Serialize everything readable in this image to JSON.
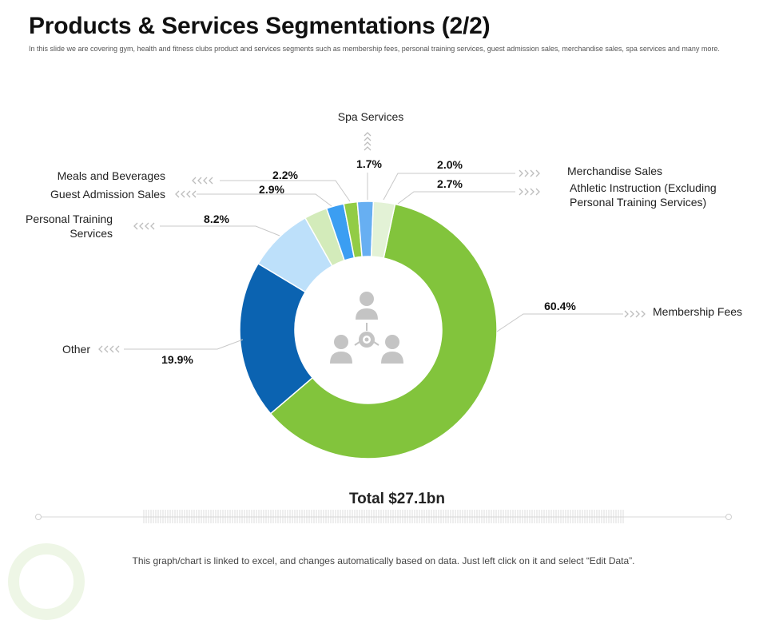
{
  "title": "Products & Services Segmentations (2/2)",
  "subtitle": "In this slide we are covering gym, health and fitness clubs product and services segments such as membership fees, personal training services, guest admission sales, merchandise sales, spa services and many more.",
  "chart_data": {
    "type": "donut",
    "title": "Products & Services Segmentations (2/2)",
    "total_label": "Total $27.1bn",
    "unit": "%",
    "segments": [
      {
        "name": "Membership Fees",
        "value": 60.4,
        "label": "60.4%",
        "color": "#82c43c"
      },
      {
        "name": "Other",
        "value": 19.9,
        "label": "19.9%",
        "color": "#0b63b1"
      },
      {
        "name": "Personal Training Services",
        "value": 8.2,
        "label": "8.2%",
        "color": "#bde0fa"
      },
      {
        "name": "Guest Admission Sales",
        "value": 2.9,
        "label": "2.9%",
        "color": "#d3ebba"
      },
      {
        "name": "Meals and Beverages",
        "value": 2.2,
        "label": "2.2%",
        "color": "#3b9ef2"
      },
      {
        "name": "Spa Services",
        "value": 1.7,
        "label": "1.7%",
        "color": "#92cc46"
      },
      {
        "name": "Merchandise Sales",
        "value": 2.0,
        "label": "2.0%",
        "color": "#67aff2"
      },
      {
        "name": "Athletic Instruction (Excluding Personal Training Services)",
        "value": 2.7,
        "label": "2.7%",
        "color": "#e3f2d6"
      }
    ]
  },
  "labels": {
    "membership": "Membership Fees",
    "other": "Other",
    "personal_training_1": "Personal Training",
    "personal_training_2": "Services",
    "guest_admission": "Guest Admission Sales",
    "meals": "Meals and Beverages",
    "spa": "Spa Services",
    "merchandise": "Merchandise Sales",
    "athletic_1": "Athletic Instruction (Excluding",
    "athletic_2": "Personal Training Services)"
  },
  "footnote": "This graph/chart is linked to excel, and changes automatically based on data. Just left click on it and select “Edit Data”.",
  "icons": {
    "center": "people-network-icon",
    "chevron": "chevron-arrow-icon"
  },
  "colors": {
    "line": "#c8c8c8",
    "arrow": "#bdbdbd",
    "icon": "#c4c4c4"
  }
}
